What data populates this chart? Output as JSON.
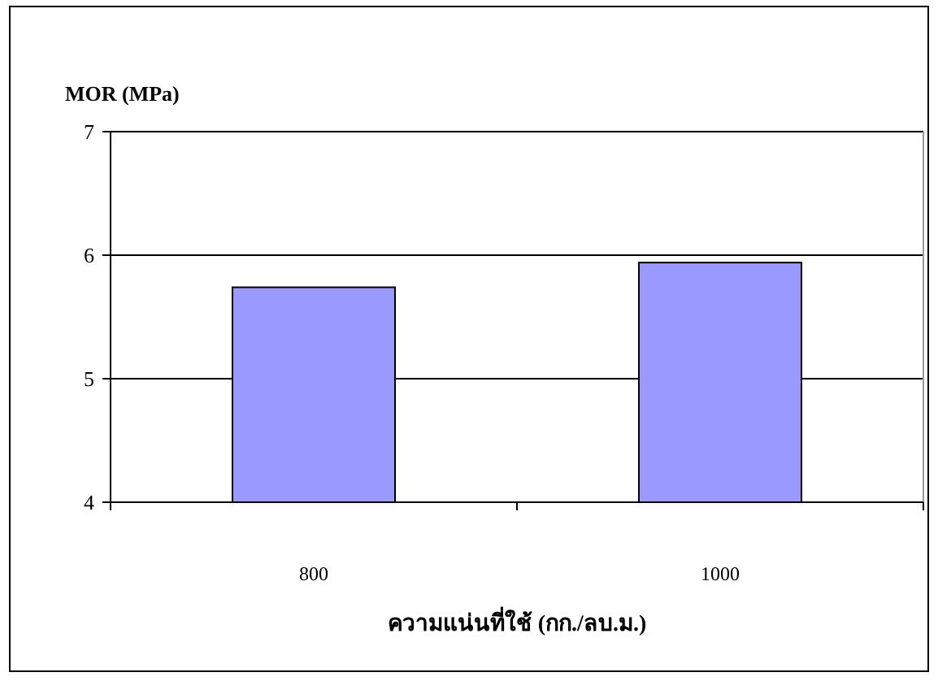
{
  "chart_data": {
    "type": "bar",
    "ylabel": "MOR (MPa)",
    "xlabel": "ความแน่นที่ใช้ (กก./ลบ.ม.)",
    "categories": [
      "800",
      "1000"
    ],
    "values": [
      5.74,
      5.94
    ],
    "color": "#9999ff",
    "ylim": [
      4,
      7
    ],
    "yticks": [
      4,
      5,
      6,
      7
    ],
    "grid": "y"
  }
}
